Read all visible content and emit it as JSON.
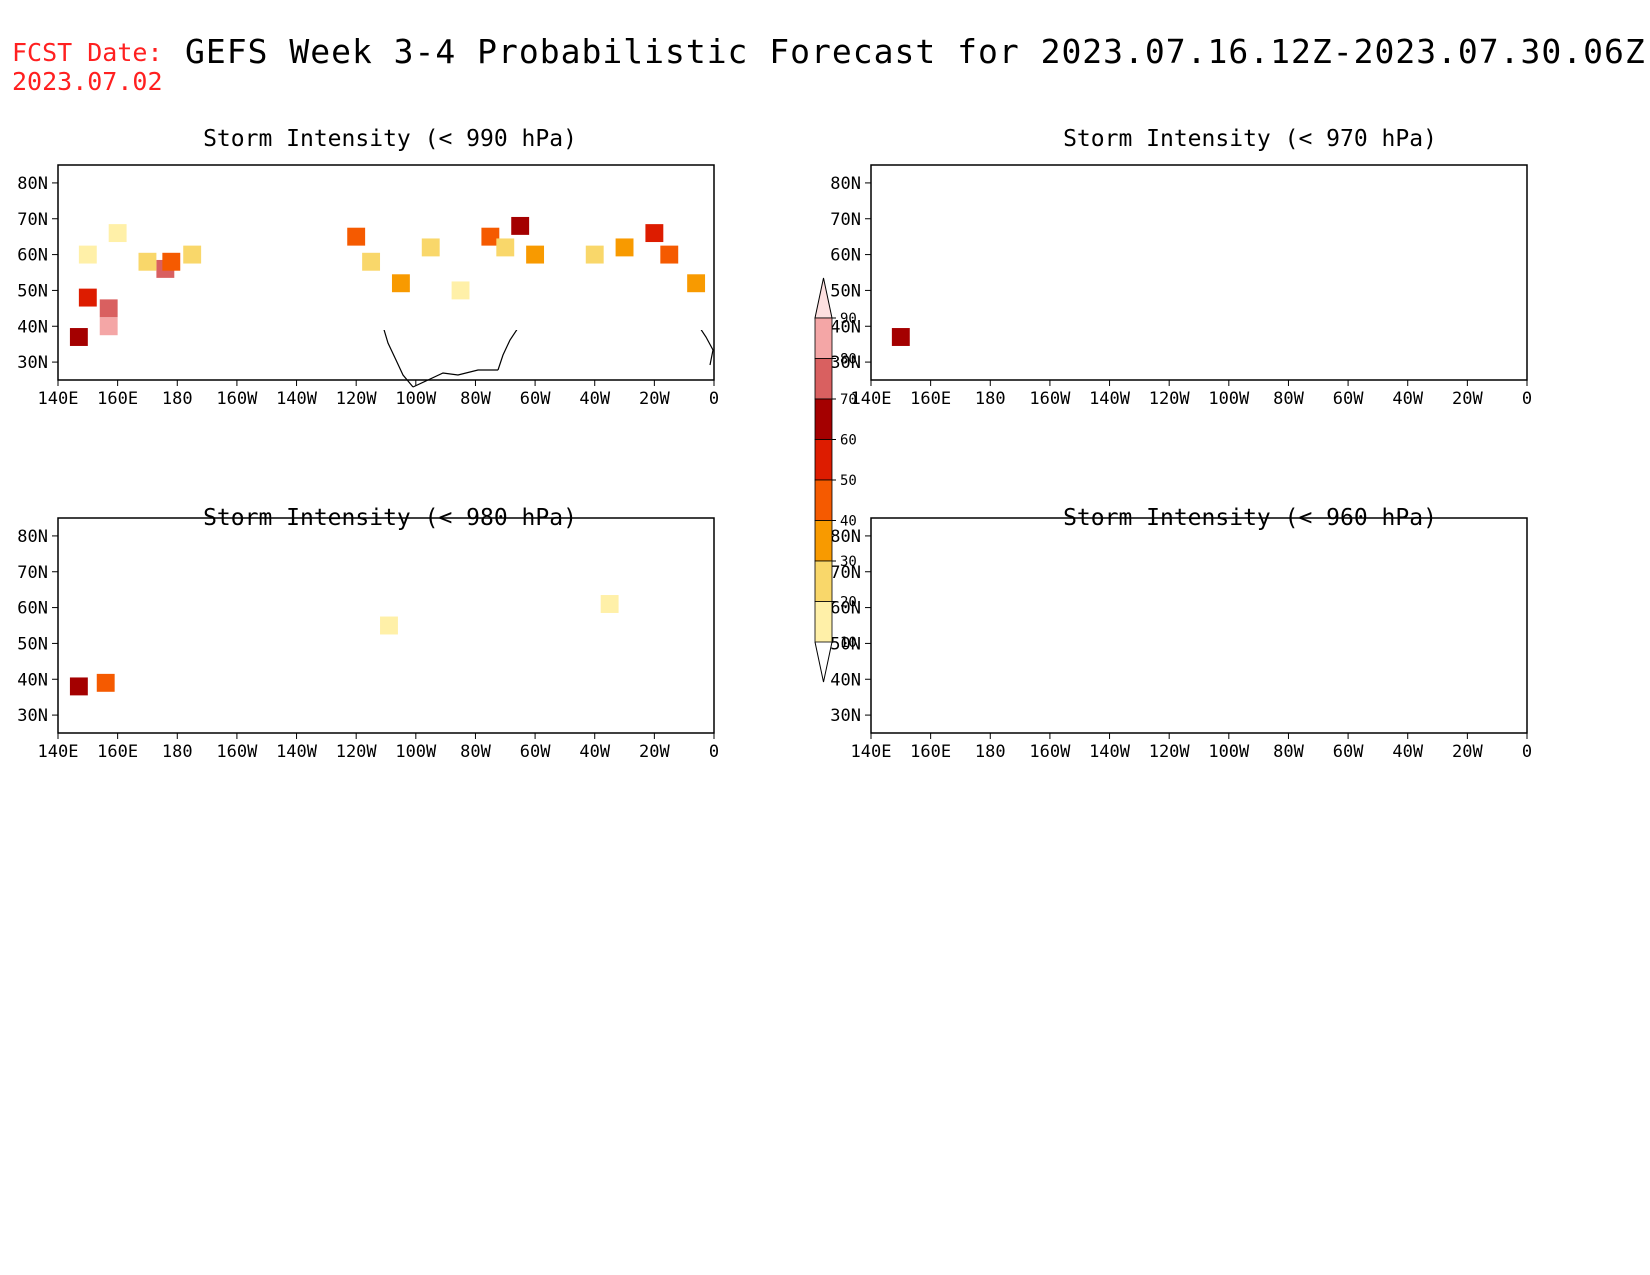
{
  "header": {
    "fcst_label": "FCST Date:",
    "fcst_date": "2023.07.02",
    "title": "GEFS Week 3-4 Probabilistic Forecast for 2023.07.16.12Z-2023.07.30.06Z"
  },
  "axes": {
    "lat_ticks": [
      "80N",
      "70N",
      "60N",
      "50N",
      "40N",
      "30N"
    ],
    "lon_ticks": [
      "140E",
      "160E",
      "180",
      "160W",
      "140W",
      "120W",
      "100W",
      "80W",
      "60W",
      "40W",
      "20W",
      "0"
    ]
  },
  "panels": [
    {
      "title": "Storm Intensity (< 990 hPa)"
    },
    {
      "title": "Storm Intensity (< 970 hPa)"
    },
    {
      "title": "Storm Intensity (< 980 hPa)"
    },
    {
      "title": "Storm Intensity (< 960 hPa)"
    }
  ],
  "colorbar": {
    "labels": [
      "90",
      "80",
      "70",
      "60",
      "50",
      "40",
      "30",
      "20",
      "10"
    ],
    "colors": [
      "#f4a6a6",
      "#d96060",
      "#a40000",
      "#dd1c00",
      "#f55a00",
      "#f89a00",
      "#f9d76a",
      "#fff0a8"
    ]
  },
  "chart_data": {
    "type": "heatmap",
    "variable": "probability (%)",
    "lat_range": [
      25,
      85
    ],
    "lon_range": [
      140,
      360
    ],
    "levels": [
      10,
      20,
      30,
      40,
      50,
      60,
      70,
      80,
      90
    ],
    "panels": [
      {
        "threshold": "< 990 hPa",
        "cells": [
          {
            "lon": 150,
            "lat": 48,
            "value": 55
          },
          {
            "lon": 157,
            "lat": 45,
            "value": 75
          },
          {
            "lon": 157,
            "lat": 40,
            "value": 85
          },
          {
            "lon": 147,
            "lat": 37,
            "value": 60
          },
          {
            "lon": 176,
            "lat": 56,
            "value": 70
          },
          {
            "lon": 178,
            "lat": 58,
            "value": 45
          },
          {
            "lon": 170,
            "lat": 58,
            "value": 25
          },
          {
            "lon": 185,
            "lat": 60,
            "value": 20
          },
          {
            "lon": 150,
            "lat": 60,
            "value": 15
          },
          {
            "lon": 160,
            "lat": 66,
            "value": 15
          },
          {
            "lon": 240,
            "lat": 65,
            "value": 40
          },
          {
            "lon": 245,
            "lat": 58,
            "value": 25
          },
          {
            "lon": 255,
            "lat": 52,
            "value": 30
          },
          {
            "lon": 265,
            "lat": 62,
            "value": 25
          },
          {
            "lon": 285,
            "lat": 65,
            "value": 40
          },
          {
            "lon": 295,
            "lat": 68,
            "value": 60
          },
          {
            "lon": 300,
            "lat": 60,
            "value": 35
          },
          {
            "lon": 290,
            "lat": 62,
            "value": 20
          },
          {
            "lon": 275,
            "lat": 50,
            "value": 15
          },
          {
            "lon": 340,
            "lat": 66,
            "value": 55
          },
          {
            "lon": 330,
            "lat": 62,
            "value": 30
          },
          {
            "lon": 345,
            "lat": 60,
            "value": 40
          },
          {
            "lon": 320,
            "lat": 60,
            "value": 20
          },
          {
            "lon": 354,
            "lat": 52,
            "value": 35
          }
        ]
      },
      {
        "threshold": "< 970 hPa",
        "cells": [
          {
            "lon": 150,
            "lat": 37,
            "value": 60
          }
        ]
      },
      {
        "threshold": "< 980 hPa",
        "cells": [
          {
            "lon": 147,
            "lat": 38,
            "value": 65
          },
          {
            "lon": 156,
            "lat": 39,
            "value": 45
          },
          {
            "lon": 251,
            "lat": 55,
            "value": 12
          },
          {
            "lon": 325,
            "lat": 61,
            "value": 12
          }
        ]
      },
      {
        "threshold": "< 960 hPa",
        "cells": []
      }
    ]
  }
}
